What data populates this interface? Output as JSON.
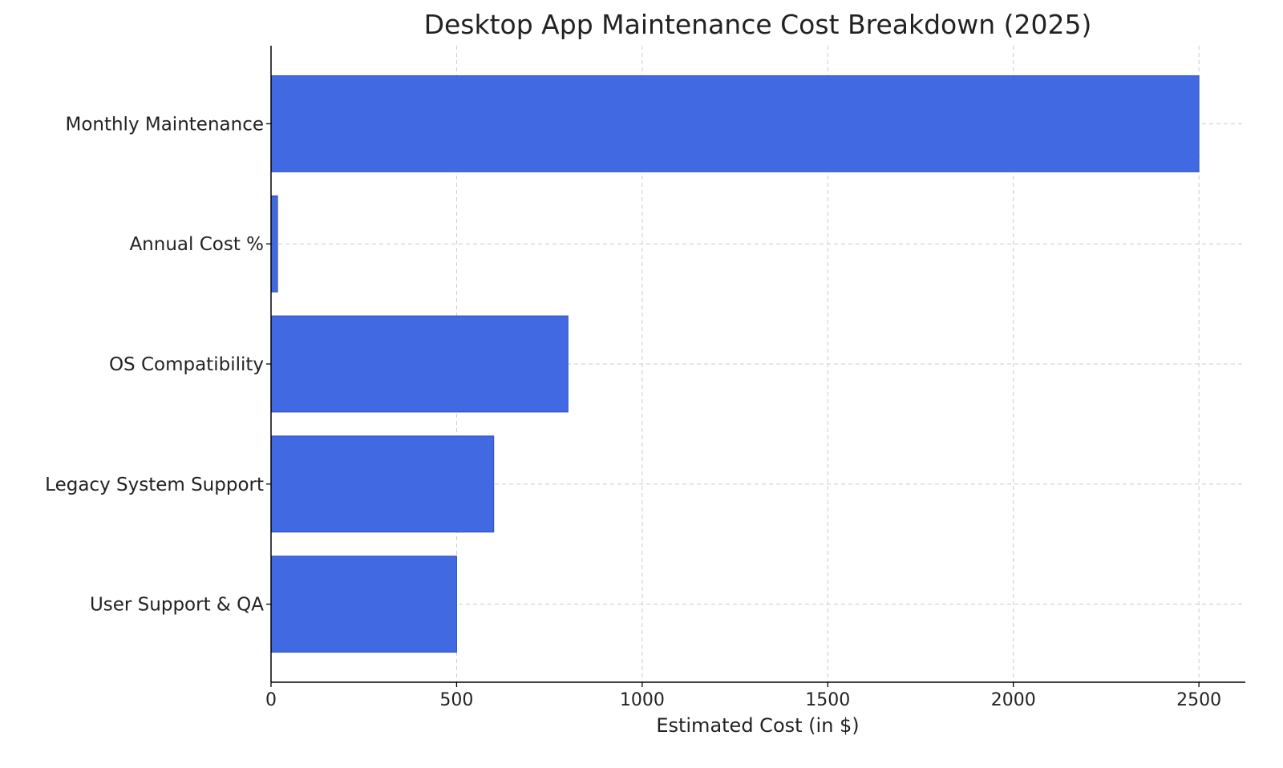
{
  "chart_data": {
    "type": "bar",
    "orientation": "horizontal",
    "title": "Desktop App Maintenance Cost Breakdown (2025)",
    "xlabel": "Estimated Cost (in $)",
    "ylabel": "",
    "categories": [
      "Monthly Maintenance",
      "Annual Cost %",
      "OS Compatibility",
      "Legacy System Support",
      "User Support & QA"
    ],
    "values": [
      2500,
      17.5,
      800,
      600,
      500
    ],
    "xlim": [
      0,
      2625
    ],
    "xticks": [
      0,
      500,
      1000,
      1500,
      2000,
      2500
    ],
    "grid": true,
    "bar_color": "#4169E1"
  }
}
